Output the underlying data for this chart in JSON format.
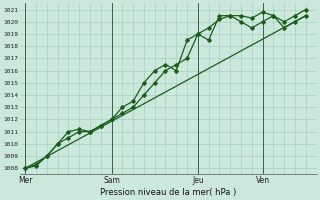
{
  "xlabel": "Pression niveau de la mer( hPa )",
  "bg_color": "#cce8dd",
  "grid_color": "#99ccbb",
  "line_color": "#1a5c1a",
  "vline_color": "#336644",
  "ylim": [
    1007.5,
    1021.5
  ],
  "yticks": [
    1008,
    1009,
    1010,
    1011,
    1012,
    1013,
    1014,
    1015,
    1016,
    1017,
    1018,
    1019,
    1020,
    1021
  ],
  "day_labels": [
    "Mer",
    "Sam",
    "Jeu",
    "Ven"
  ],
  "day_positions": [
    0,
    8,
    16,
    22
  ],
  "xlim": [
    -0.5,
    27
  ],
  "series1_x": [
    0,
    1,
    2,
    3,
    4,
    5,
    6,
    7,
    8,
    9,
    10,
    11,
    12,
    13,
    14,
    15,
    16,
    17,
    18,
    19,
    20,
    21,
    22,
    23,
    24,
    25,
    26
  ],
  "series1_y": [
    1008,
    1008.3,
    1009,
    1010,
    1011,
    1011.2,
    1011,
    1011.5,
    1012,
    1013,
    1013.5,
    1015,
    1016,
    1016.5,
    1016,
    1018.5,
    1019,
    1018.5,
    1020.5,
    1020.5,
    1020.5,
    1020.3,
    1020.8,
    1020.5,
    1020,
    1020.5,
    1021
  ],
  "series2_x": [
    0,
    1,
    2,
    3,
    4,
    5,
    6,
    7,
    8,
    9,
    10,
    11,
    12,
    13,
    14,
    15,
    16,
    17,
    18,
    19,
    20,
    21,
    22,
    23,
    24,
    25,
    26
  ],
  "series2_y": [
    1008,
    1008.2,
    1009,
    1010,
    1010.5,
    1011,
    1011,
    1011.5,
    1012,
    1012.5,
    1013,
    1014,
    1015,
    1016,
    1016.5,
    1017,
    1019,
    1019.5,
    1020.2,
    1020.5,
    1020,
    1019.5,
    1020,
    1020.5,
    1019.5,
    1020,
    1020.5
  ],
  "series3_x": [
    0,
    26
  ],
  "series3_y": [
    1008,
    1020.5
  ]
}
